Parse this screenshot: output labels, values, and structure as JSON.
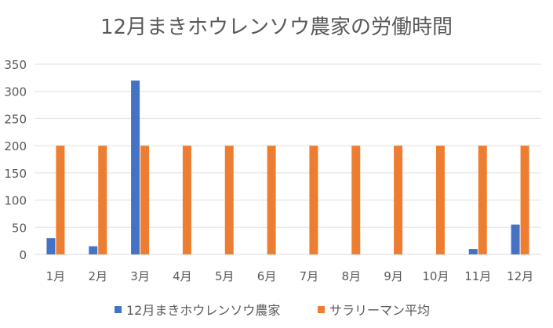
{
  "chart_data": {
    "type": "bar",
    "title": "12月まきホウレンソウ農家の労働時間",
    "categories": [
      "1月",
      "2月",
      "3月",
      "4月",
      "5月",
      "6月",
      "7月",
      "8月",
      "9月",
      "10月",
      "11月",
      "12月"
    ],
    "series": [
      {
        "name": "12月まきホウレンソウ農家",
        "color": "#4472C4",
        "values": [
          30,
          15,
          320,
          0,
          0,
          0,
          0,
          0,
          0,
          0,
          10,
          55
        ]
      },
      {
        "name": "サラリーマン平均",
        "color": "#ED7D31",
        "values": [
          200,
          200,
          200,
          200,
          200,
          200,
          200,
          200,
          200,
          200,
          200,
          200
        ]
      }
    ],
    "ylim": [
      0,
      350
    ],
    "yticks": [
      0,
      50,
      100,
      150,
      200,
      250,
      300,
      350
    ],
    "grid": true,
    "legend_position": "bottom"
  }
}
